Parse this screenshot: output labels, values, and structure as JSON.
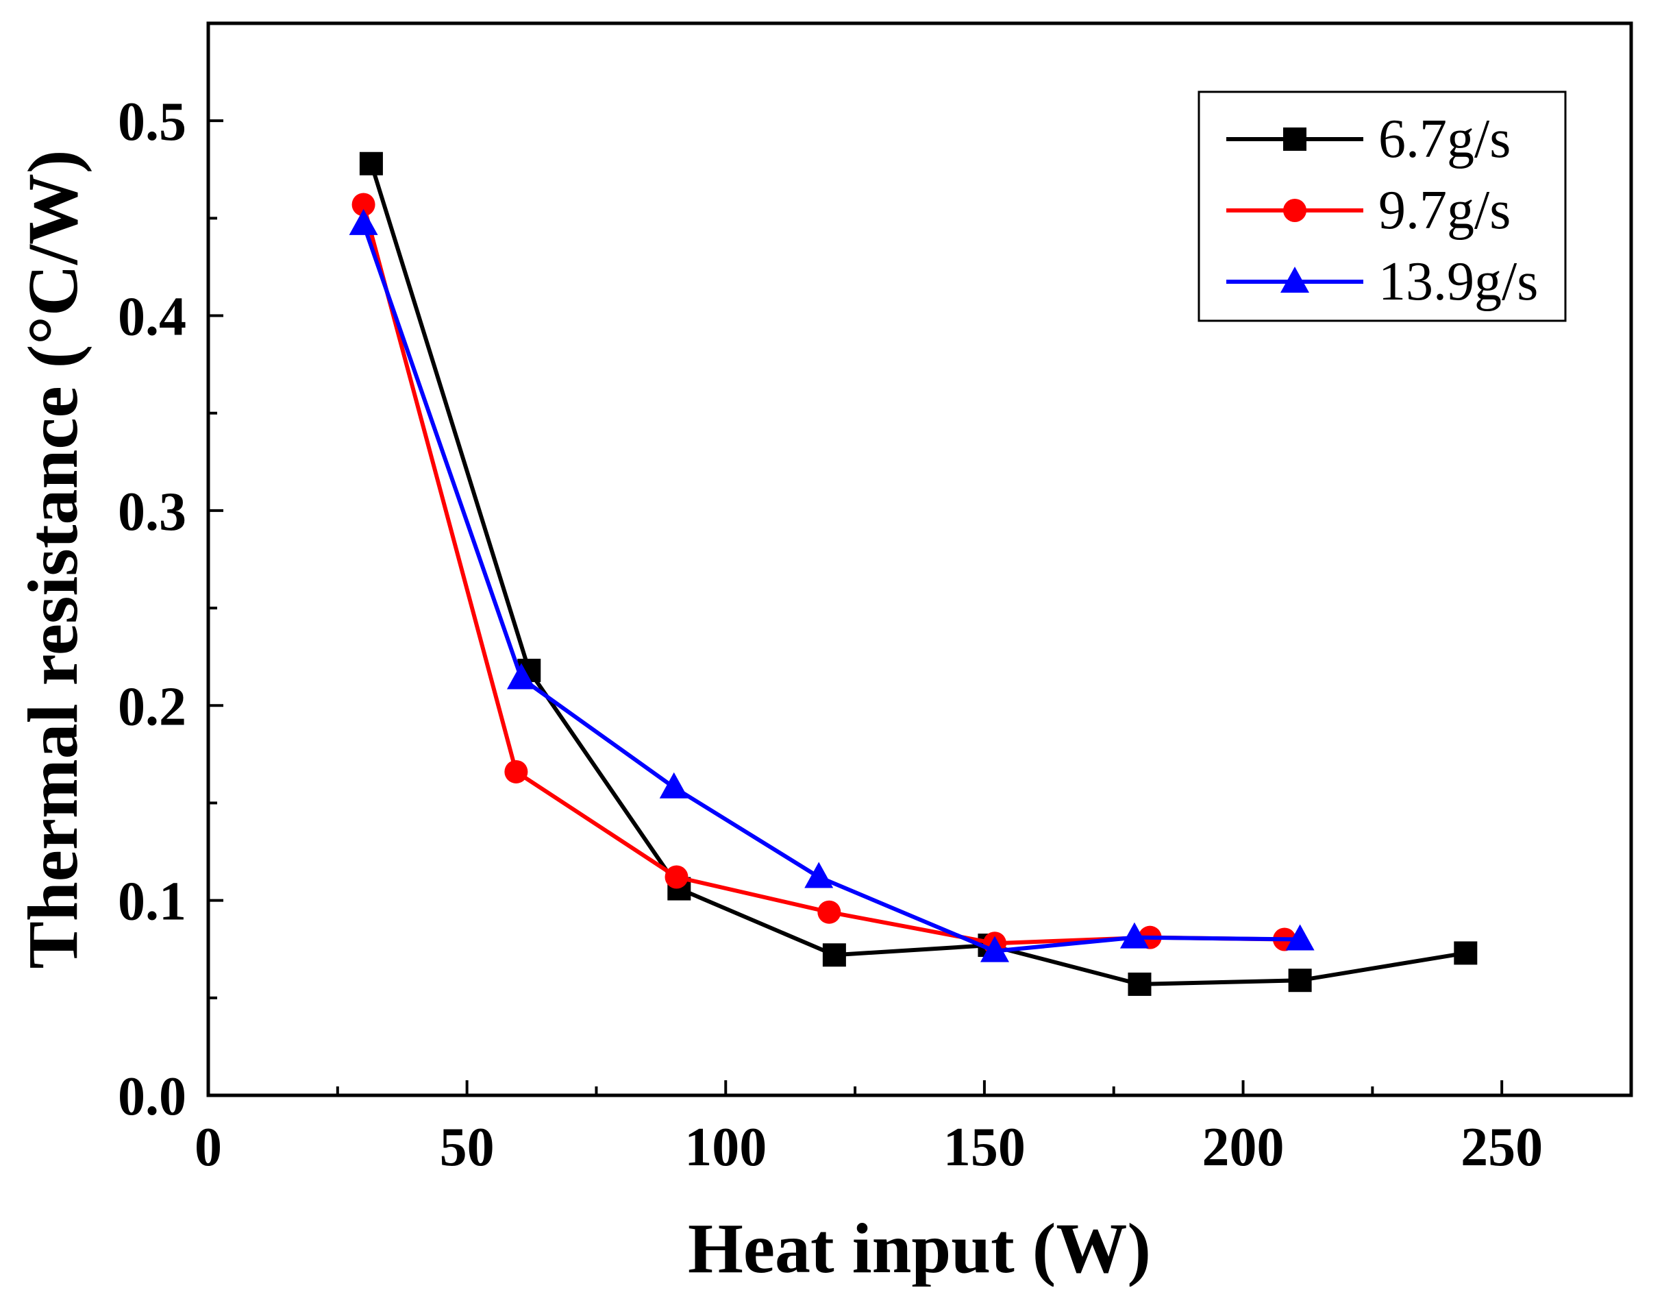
{
  "chart_data": {
    "type": "line",
    "title": "",
    "xlabel": "Heat input (W)",
    "ylabel": "Thermal resistance (°C/W)",
    "xlim": [
      0,
      275
    ],
    "ylim": [
      0,
      0.55
    ],
    "xticks": [
      0,
      50,
      100,
      150,
      200,
      250
    ],
    "xtick_labels": [
      "0",
      "50",
      "100",
      "150",
      "200",
      "250"
    ],
    "yticks": [
      0.0,
      0.1,
      0.2,
      0.3,
      0.4,
      0.5
    ],
    "ytick_labels": [
      "0.0",
      "0.1",
      "0.2",
      "0.3",
      "0.4",
      "0.5"
    ],
    "grid": false,
    "legend_position": "top-right",
    "series": [
      {
        "name": "6.7g/s",
        "color": "#000000",
        "marker": "square",
        "x": [
          31.5,
          62,
          91,
          121,
          151,
          180,
          211,
          243
        ],
        "y": [
          0.478,
          0.218,
          0.106,
          0.072,
          0.077,
          0.057,
          0.059,
          0.073
        ]
      },
      {
        "name": "9.7g/s",
        "color": "#ff0000",
        "marker": "circle",
        "x": [
          30,
          59.5,
          90.5,
          120,
          152,
          182,
          208
        ],
        "y": [
          0.457,
          0.166,
          0.112,
          0.094,
          0.078,
          0.081,
          0.08
        ]
      },
      {
        "name": "13.9g/s",
        "color": "#0000ff",
        "marker": "triangle",
        "x": [
          30,
          60.5,
          90,
          118,
          152,
          179,
          211
        ],
        "y": [
          0.447,
          0.214,
          0.158,
          0.112,
          0.074,
          0.081,
          0.08
        ]
      }
    ]
  }
}
